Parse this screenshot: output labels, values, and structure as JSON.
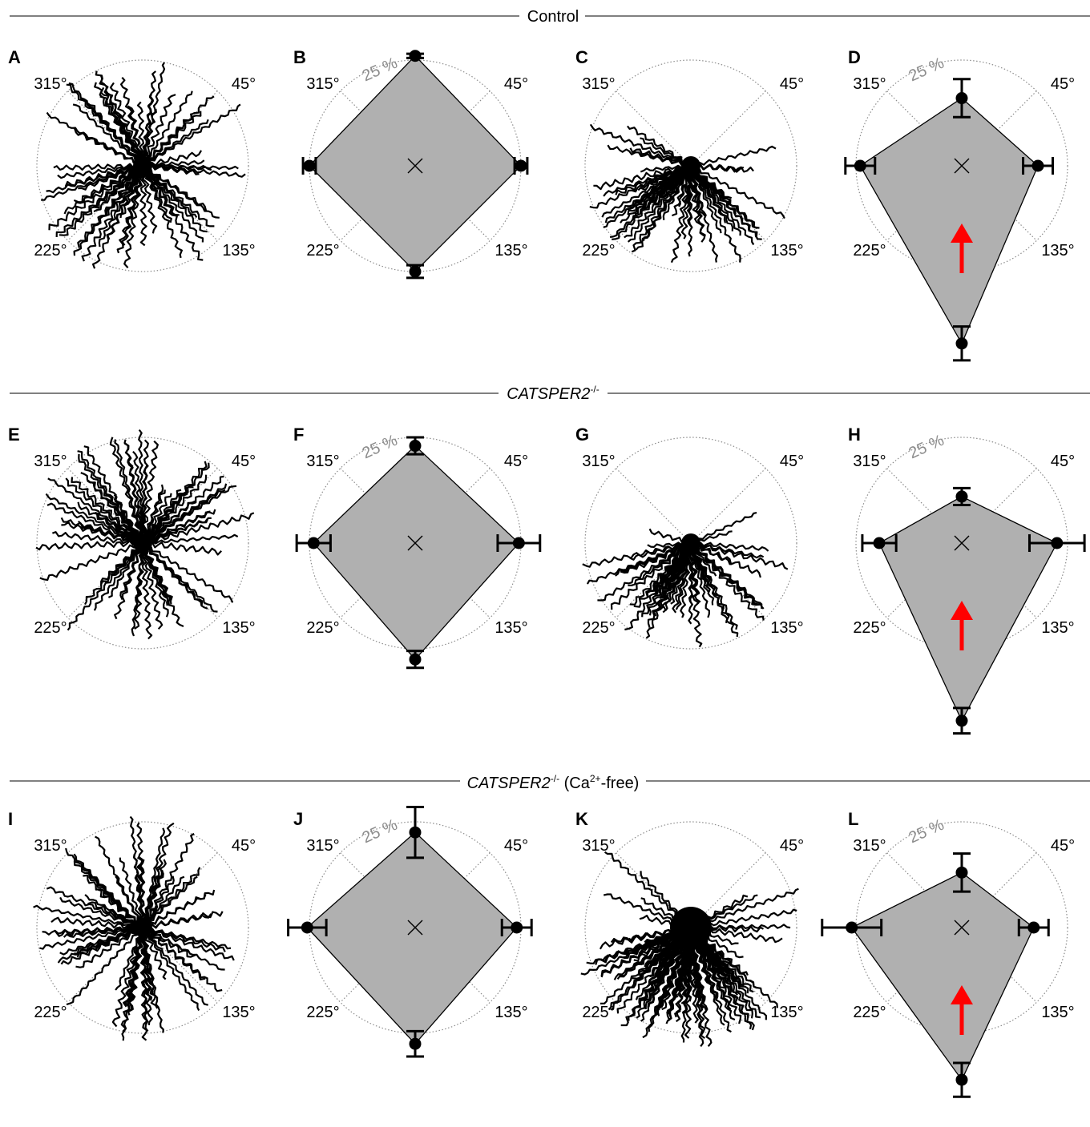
{
  "colors": {
    "fill": "#b0b0b0",
    "stroke": "#000000",
    "grid": "#8c8c8c",
    "arrow": "#ff0000",
    "trace": "#000000"
  },
  "sections": [
    {
      "title_main": "Control",
      "title_sup": "",
      "title_tail": ""
    },
    {
      "title_main": "CATSPER2",
      "title_sup": "-/-",
      "title_tail": ""
    },
    {
      "title_main": "CATSPER2",
      "title_sup": "-/-",
      "title_tail_pre": " (Ca",
      "title_tail_sup": "2+",
      "title_tail": "-free)"
    }
  ],
  "angle_labels": [
    "315°",
    "45°",
    "225°",
    "135°"
  ],
  "pct_label": "25 %",
  "chart_data": [
    {
      "panel": "A",
      "type": "scatter",
      "kind": "trajectories",
      "condition": "Control",
      "spread": "isotropic",
      "has_arrow": false
    },
    {
      "panel": "B",
      "type": "area",
      "kind": "radar",
      "condition": "Control",
      "axes": [
        "0°",
        "90°",
        "180°",
        "270°"
      ],
      "values": [
        26,
        25,
        25,
        25
      ],
      "errors": [
        0.5,
        1.5,
        1.5,
        1.5
      ],
      "ring": 25,
      "has_arrow": false
    },
    {
      "panel": "C",
      "type": "scatter",
      "kind": "trajectories",
      "condition": "Control",
      "spread": "biased toward 135°–225° (downward)",
      "has_arrow": false
    },
    {
      "panel": "D",
      "type": "area",
      "kind": "radar",
      "condition": "Control",
      "axes": [
        "0°",
        "90°",
        "180°",
        "270°"
      ],
      "values": [
        16,
        18,
        42,
        24
      ],
      "errors": [
        4.5,
        3.5,
        4,
        3.5
      ],
      "ring": 25,
      "has_arrow": true
    },
    {
      "panel": "E",
      "type": "scatter",
      "kind": "trajectories",
      "condition": "CATSPER2-/-",
      "spread": "isotropic",
      "has_arrow": false
    },
    {
      "panel": "F",
      "type": "area",
      "kind": "radar",
      "condition": "CATSPER2-/-",
      "axes": [
        "0°",
        "90°",
        "180°",
        "270°"
      ],
      "values": [
        23,
        24.5,
        27.5,
        24
      ],
      "errors": [
        2,
        5,
        2,
        4
      ],
      "ring": 25,
      "has_arrow": false
    },
    {
      "panel": "G",
      "type": "scatter",
      "kind": "trajectories",
      "condition": "CATSPER2-/-",
      "spread": "biased toward 135°–225° (downward)",
      "has_arrow": false
    },
    {
      "panel": "H",
      "type": "area",
      "kind": "radar",
      "condition": "CATSPER2-/-",
      "axes": [
        "0°",
        "90°",
        "180°",
        "270°"
      ],
      "values": [
        11,
        22.5,
        42,
        19.5
      ],
      "errors": [
        2,
        6.5,
        3,
        4
      ],
      "ring": 25,
      "has_arrow": true
    },
    {
      "panel": "I",
      "type": "scatter",
      "kind": "trajectories",
      "condition": "CATSPER2-/- (Ca2+-free)",
      "spread": "isotropic",
      "has_arrow": false
    },
    {
      "panel": "J",
      "type": "area",
      "kind": "radar",
      "condition": "CATSPER2-/- (Ca2+-free)",
      "axes": [
        "0°",
        "90°",
        "180°",
        "270°"
      ],
      "values": [
        22.5,
        24,
        27.5,
        25.5
      ],
      "errors": [
        6,
        3.5,
        3,
        4.5
      ],
      "ring": 25,
      "has_arrow": false
    },
    {
      "panel": "K",
      "type": "scatter",
      "kind": "trajectories",
      "condition": "CATSPER2-/- (Ca2+-free)",
      "spread": "dense, biased toward 135°–225° (downward)",
      "has_arrow": false
    },
    {
      "panel": "L",
      "type": "area",
      "kind": "radar",
      "condition": "CATSPER2-/- (Ca2+-free)",
      "axes": [
        "0°",
        "90°",
        "180°",
        "270°"
      ],
      "values": [
        13,
        17,
        36,
        26
      ],
      "errors": [
        4.5,
        3.5,
        4,
        7
      ],
      "ring": 25,
      "has_arrow": true
    }
  ]
}
